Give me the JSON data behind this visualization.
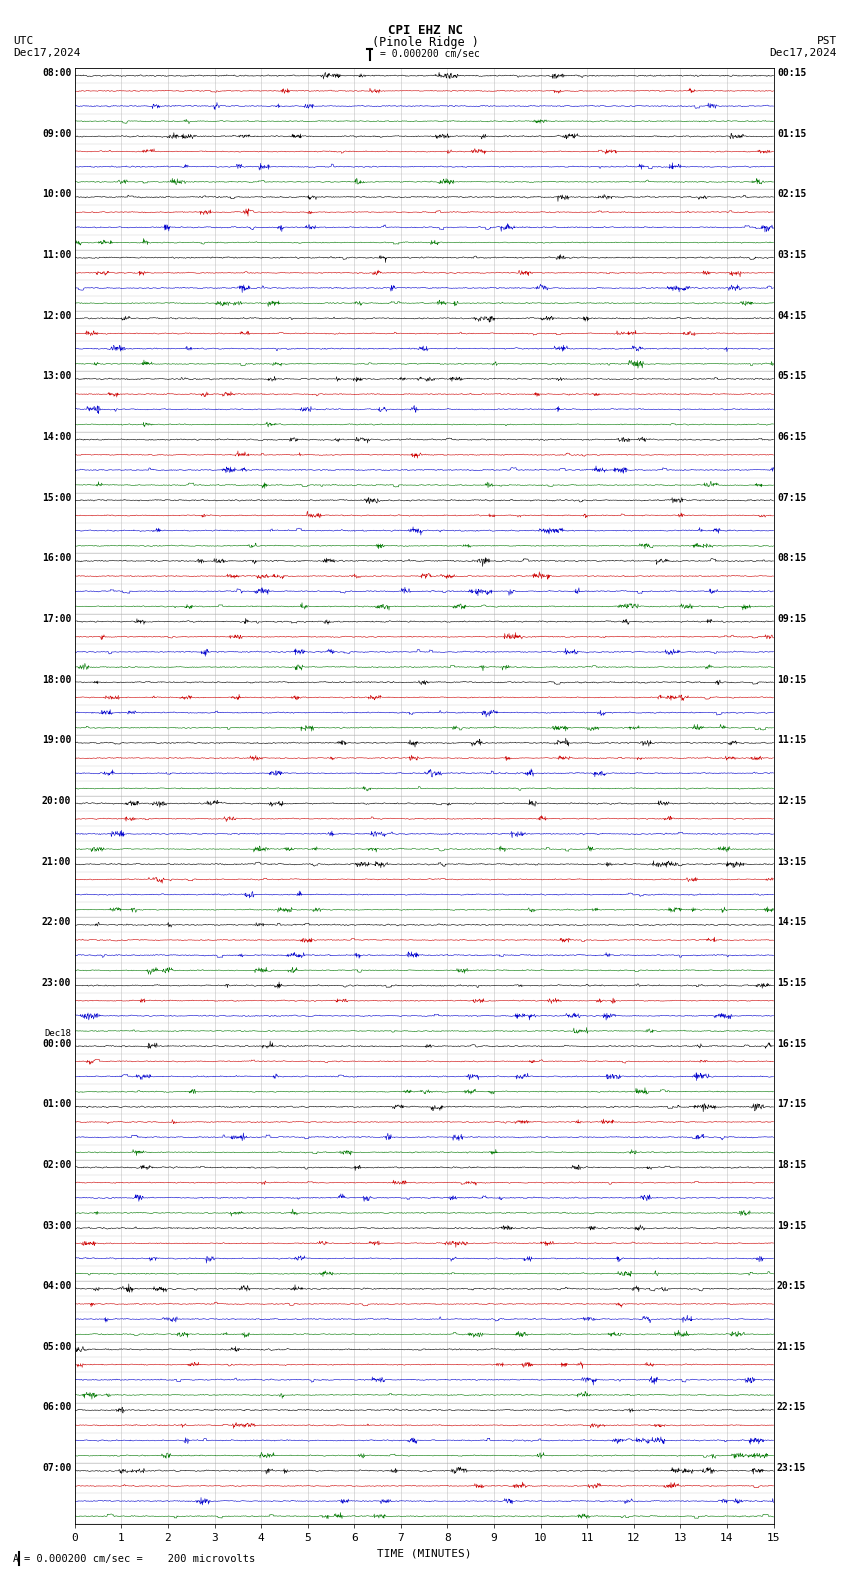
{
  "title_line1": "CPI EHZ NC",
  "title_line2": "(Pinole Ridge )",
  "scale_label": "= 0.000200 cm/sec",
  "left_header": "UTC\nDec17,2024",
  "right_header": "PST\nDec17,2024",
  "bottom_note": "= 0.000200 cm/sec =    200 microvolts",
  "xlabel": "TIME (MINUTES)",
  "xmin": 0,
  "xmax": 15,
  "bg_color": "#ffffff",
  "grid_color": "#aaaaaa",
  "trace_colors": [
    "#000000",
    "#cc0000",
    "#0000cc",
    "#007700"
  ],
  "left_labels_utc": [
    "08:00",
    "09:00",
    "10:00",
    "11:00",
    "12:00",
    "13:00",
    "14:00",
    "15:00",
    "16:00",
    "17:00",
    "18:00",
    "19:00",
    "20:00",
    "21:00",
    "22:00",
    "23:00",
    "Dec18\n00:00",
    "01:00",
    "02:00",
    "03:00",
    "04:00",
    "05:00",
    "06:00",
    "07:00"
  ],
  "right_labels_pst": [
    "00:15",
    "01:15",
    "02:15",
    "03:15",
    "04:15",
    "05:15",
    "06:15",
    "07:15",
    "08:15",
    "09:15",
    "10:15",
    "11:15",
    "12:15",
    "13:15",
    "14:15",
    "15:15",
    "16:15",
    "17:15",
    "18:15",
    "19:15",
    "20:15",
    "21:15",
    "22:15",
    "23:15"
  ],
  "num_rows": 24,
  "traces_per_row": 4,
  "noise_std": [
    0.025,
    0.02,
    0.022,
    0.02
  ],
  "spike_probability": 0.0015,
  "spike_amplitude": [
    0.12,
    0.1,
    0.14,
    0.12
  ],
  "burst_probability": 0.003,
  "burst_amplitude": [
    0.08,
    0.07,
    0.09,
    0.08
  ]
}
